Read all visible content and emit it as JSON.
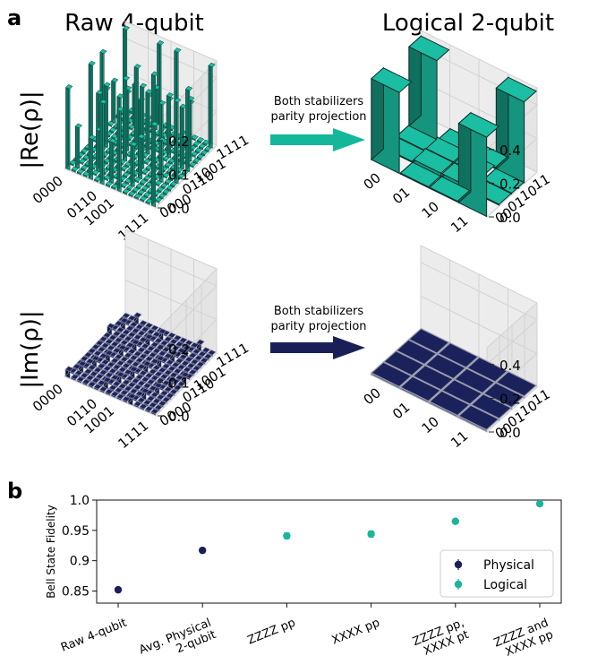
{
  "panel_labels": {
    "a": "a",
    "b": "b"
  },
  "column_titles": {
    "left": "Raw 4-qubit",
    "right": "Logical 2-qubit"
  },
  "row_titles": {
    "top": "|Re(ρ)|",
    "bottom": "|Im(ρ)|"
  },
  "arrows": {
    "top": {
      "line1": "Both stabilizers",
      "line2": "parity projection",
      "color": "#14b79a"
    },
    "bottom": {
      "line1": "Both stabilizers",
      "line2": "parity projection",
      "color": "#1a2057"
    }
  },
  "colors": {
    "logical": "#1ab59a",
    "physical": "#1a2057",
    "bar_real": "#1ab59a",
    "bar_imag": "#1a2057"
  },
  "chart_data": [
    {
      "type": "bar3d",
      "name": "raw-real",
      "x_ticks": [
        "0000",
        "0110",
        "1001",
        "1111"
      ],
      "y_ticks": [
        "1111",
        "1001",
        "0110",
        "0000"
      ],
      "z_ticks": [
        "0.0",
        "0.1",
        "0.2"
      ],
      "zlim": [
        0,
        0.25
      ]
    },
    {
      "type": "bar3d",
      "name": "logical-real",
      "x_ticks": [
        "00",
        "01",
        "10",
        "11"
      ],
      "y_ticks": [
        "11",
        "10",
        "01",
        "00"
      ],
      "z_ticks": [
        "0.0",
        "0.2",
        "0.4"
      ],
      "zlim": [
        0,
        0.5
      ],
      "values": [
        [
          0.48,
          0.0,
          0.0,
          0.47
        ],
        [
          0.0,
          0.02,
          0.02,
          0.0
        ],
        [
          0.0,
          0.02,
          0.02,
          0.0
        ],
        [
          0.47,
          0.0,
          0.0,
          0.48
        ]
      ]
    },
    {
      "type": "bar3d",
      "name": "raw-imag",
      "x_ticks": [
        "0000",
        "0110",
        "1001",
        "1111"
      ],
      "y_ticks": [
        "1111",
        "1001",
        "0110",
        "0000"
      ],
      "z_ticks": [
        "0.0",
        "0.1",
        "0.2"
      ],
      "zlim": [
        0,
        0.25
      ]
    },
    {
      "type": "bar3d",
      "name": "logical-imag",
      "x_ticks": [
        "00",
        "01",
        "10",
        "11"
      ],
      "y_ticks": [
        "11",
        "10",
        "01",
        "00"
      ],
      "z_ticks": [
        "0.0",
        "0.2",
        "0.4"
      ],
      "zlim": [
        0,
        0.5
      ],
      "values": [
        [
          0.0,
          0.0,
          0.0,
          0.0
        ],
        [
          0.0,
          0.0,
          0.0,
          0.0
        ],
        [
          0.0,
          0.0,
          0.0,
          0.0
        ],
        [
          0.0,
          0.0,
          0.0,
          0.0
        ]
      ]
    },
    {
      "type": "scatter",
      "name": "fidelity",
      "ylabel": "Bell State Fidelity",
      "ylim": [
        0.83,
        1.0
      ],
      "y_ticks": [
        "0.85",
        "0.9",
        "0.95",
        "1.0"
      ],
      "categories": [
        "Raw 4-qubit",
        "Avg. Physical 2-qubit",
        "ZZZZ pp",
        "XXXX pp",
        "ZZZZ pp, XXXX pt",
        "ZZZZ and XXXX pp"
      ],
      "series": [
        {
          "name": "Physical",
          "color": "#1a2057",
          "x": [
            0,
            1
          ],
          "y": [
            0.852,
            0.917
          ],
          "err": [
            0.003,
            0.003
          ]
        },
        {
          "name": "Logical",
          "color": "#1ab59a",
          "x": [
            2,
            3,
            4,
            5
          ],
          "y": [
            0.941,
            0.944,
            0.965,
            0.994
          ],
          "err": [
            0.005,
            0.005,
            0.003,
            0.002
          ]
        }
      ],
      "legend": "bottom-right"
    }
  ]
}
